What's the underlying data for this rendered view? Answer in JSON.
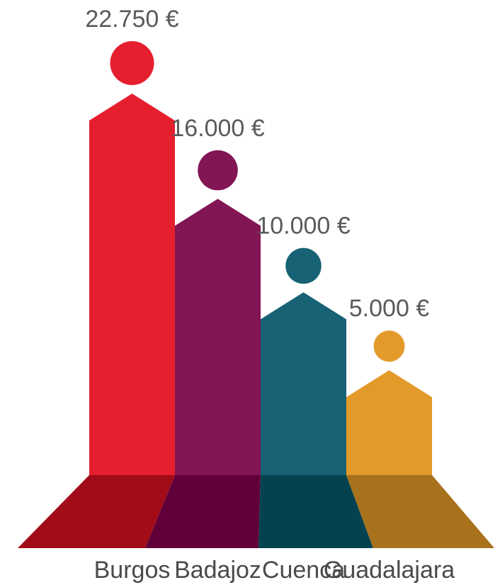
{
  "chart_data": {
    "type": "bar",
    "categories": [
      "Burgos",
      "Badajoz",
      "Cuenca",
      "Guadalajara"
    ],
    "values": [
      22750,
      16000,
      10000,
      5000
    ],
    "value_labels": [
      "22.750 €",
      "16.000 €",
      "10.000 €",
      "5.000 €"
    ],
    "colors": [
      "#e51f2e",
      "#821554",
      "#176274",
      "#e29b2b"
    ],
    "shadow_colors": [
      "#a20c18",
      "#610038",
      "#05424f",
      "#a8721d"
    ],
    "ylim": [
      0,
      22750
    ],
    "title": "",
    "xlabel": "",
    "ylabel": "",
    "grid": false
  }
}
